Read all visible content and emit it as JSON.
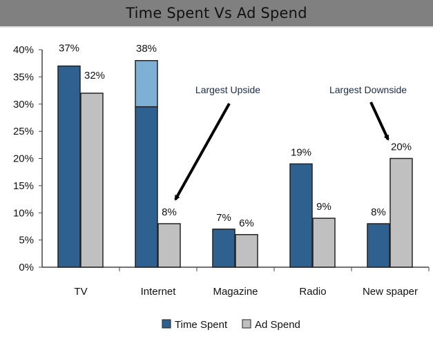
{
  "chart_data": {
    "type": "bar",
    "title": "Time Spent Vs Ad Spend",
    "xlabel": "",
    "ylabel": "",
    "ylim": [
      0,
      40
    ],
    "yticks": [
      "0%",
      "5%",
      "10%",
      "15%",
      "20%",
      "25%",
      "30%",
      "35%",
      "40%"
    ],
    "categories": [
      "TV",
      "Internet",
      "Magazine",
      "Radio",
      "New spaper"
    ],
    "series": [
      {
        "name": "Time Spent",
        "values": [
          37,
          38,
          7,
          19,
          8
        ],
        "labels": [
          "37%",
          "38%",
          "7%",
          "19%",
          "8%"
        ],
        "color": "#2f6190"
      },
      {
        "name": "Ad Spend",
        "values": [
          32,
          8,
          6,
          9,
          20
        ],
        "labels": [
          "32%",
          "8%",
          "6%",
          "9%",
          "20%"
        ],
        "color": "#c0c0c0"
      }
    ],
    "internet_time_spent_dark_portion": 29.5,
    "highlight_color": "#7eb0d6",
    "annotations": [
      {
        "text": "Largest Upside",
        "target": "Internet Ad Spend"
      },
      {
        "text": "Largest Downside",
        "target": "New spaper Ad Spend"
      }
    ],
    "legend": {
      "position": "bottom",
      "entries": [
        "Time Spent",
        "Ad Spend"
      ]
    },
    "grid": false
  }
}
